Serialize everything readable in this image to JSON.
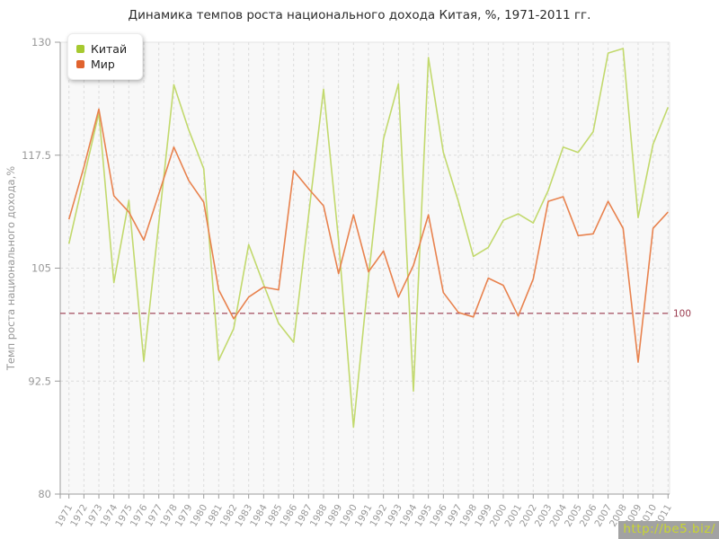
{
  "title": "Динамика темпов роста национального дохода Китая, %, 1971-2011 гг.",
  "watermark": "http://be5.biz/",
  "colors": {
    "plot_bg": "#f8f8f8",
    "grid": "#dcdcdc",
    "axis": "#9c9c9c",
    "border_light": "#e4e4e4",
    "tick_text": "#999999",
    "title_text": "#2b2b2b",
    "baseline": "#993a4d",
    "watermark_bg": "#a2a2a2",
    "watermark_text": "#c9d630"
  },
  "chart_data": {
    "type": "line",
    "title": "Динамика темпов роста национального дохода Китая, %, 1971-2011 гг.",
    "xlabel": "",
    "ylabel": "Темп роста национального дохода,%",
    "ylim": [
      80,
      130
    ],
    "yticks": [
      80,
      92.5,
      105,
      117.5,
      130
    ],
    "grid": true,
    "legend_position": "top-left",
    "baseline": {
      "value": 100,
      "label": "100"
    },
    "categories": [
      "1971",
      "1972",
      "1973",
      "1974",
      "1975",
      "1976",
      "1977",
      "1978",
      "1979",
      "1980",
      "1981",
      "1982",
      "1983",
      "1984",
      "1985",
      "1986",
      "1987",
      "1988",
      "1989",
      "1990",
      "1991",
      "1992",
      "1993",
      "1994",
      "1995",
      "1996",
      "1997",
      "1998",
      "1999",
      "2000",
      "2001",
      "2002",
      "2003",
      "2004",
      "2005",
      "2006",
      "2007",
      "2008",
      "2009",
      "2010",
      "2011"
    ],
    "series": [
      {
        "name": "Китай",
        "line_color": "#c2d96d",
        "marker_color": "#a6c930",
        "values": [
          107.7,
          115.0,
          122.2,
          103.4,
          112.5,
          94.7,
          110.0,
          125.3,
          120.3,
          116.0,
          94.8,
          98.3,
          107.6,
          103.2,
          98.9,
          96.8,
          110.8,
          124.8,
          108.1,
          87.4,
          104.0,
          119.3,
          125.4,
          91.4,
          128.3,
          117.8,
          112.4,
          106.3,
          107.3,
          110.3,
          111.0,
          110.0,
          113.6,
          118.4,
          117.8,
          120.1,
          128.8,
          129.3,
          110.6,
          118.7,
          122.8
        ]
      },
      {
        "name": "Мир",
        "line_color": "#e8824e",
        "marker_color": "#e0632e",
        "values": [
          110.4,
          116.2,
          122.6,
          113.0,
          111.2,
          108.1,
          113.2,
          118.4,
          114.7,
          112.3,
          102.6,
          99.4,
          101.8,
          102.9,
          102.6,
          115.8,
          113.8,
          111.9,
          104.4,
          110.9,
          104.6,
          106.9,
          101.8,
          105.3,
          110.9,
          102.3,
          100.1,
          99.6,
          103.9,
          103.1,
          99.7,
          103.8,
          112.4,
          112.9,
          108.6,
          108.8,
          112.4,
          109.4,
          94.6,
          109.4,
          111.2
        ]
      }
    ]
  }
}
